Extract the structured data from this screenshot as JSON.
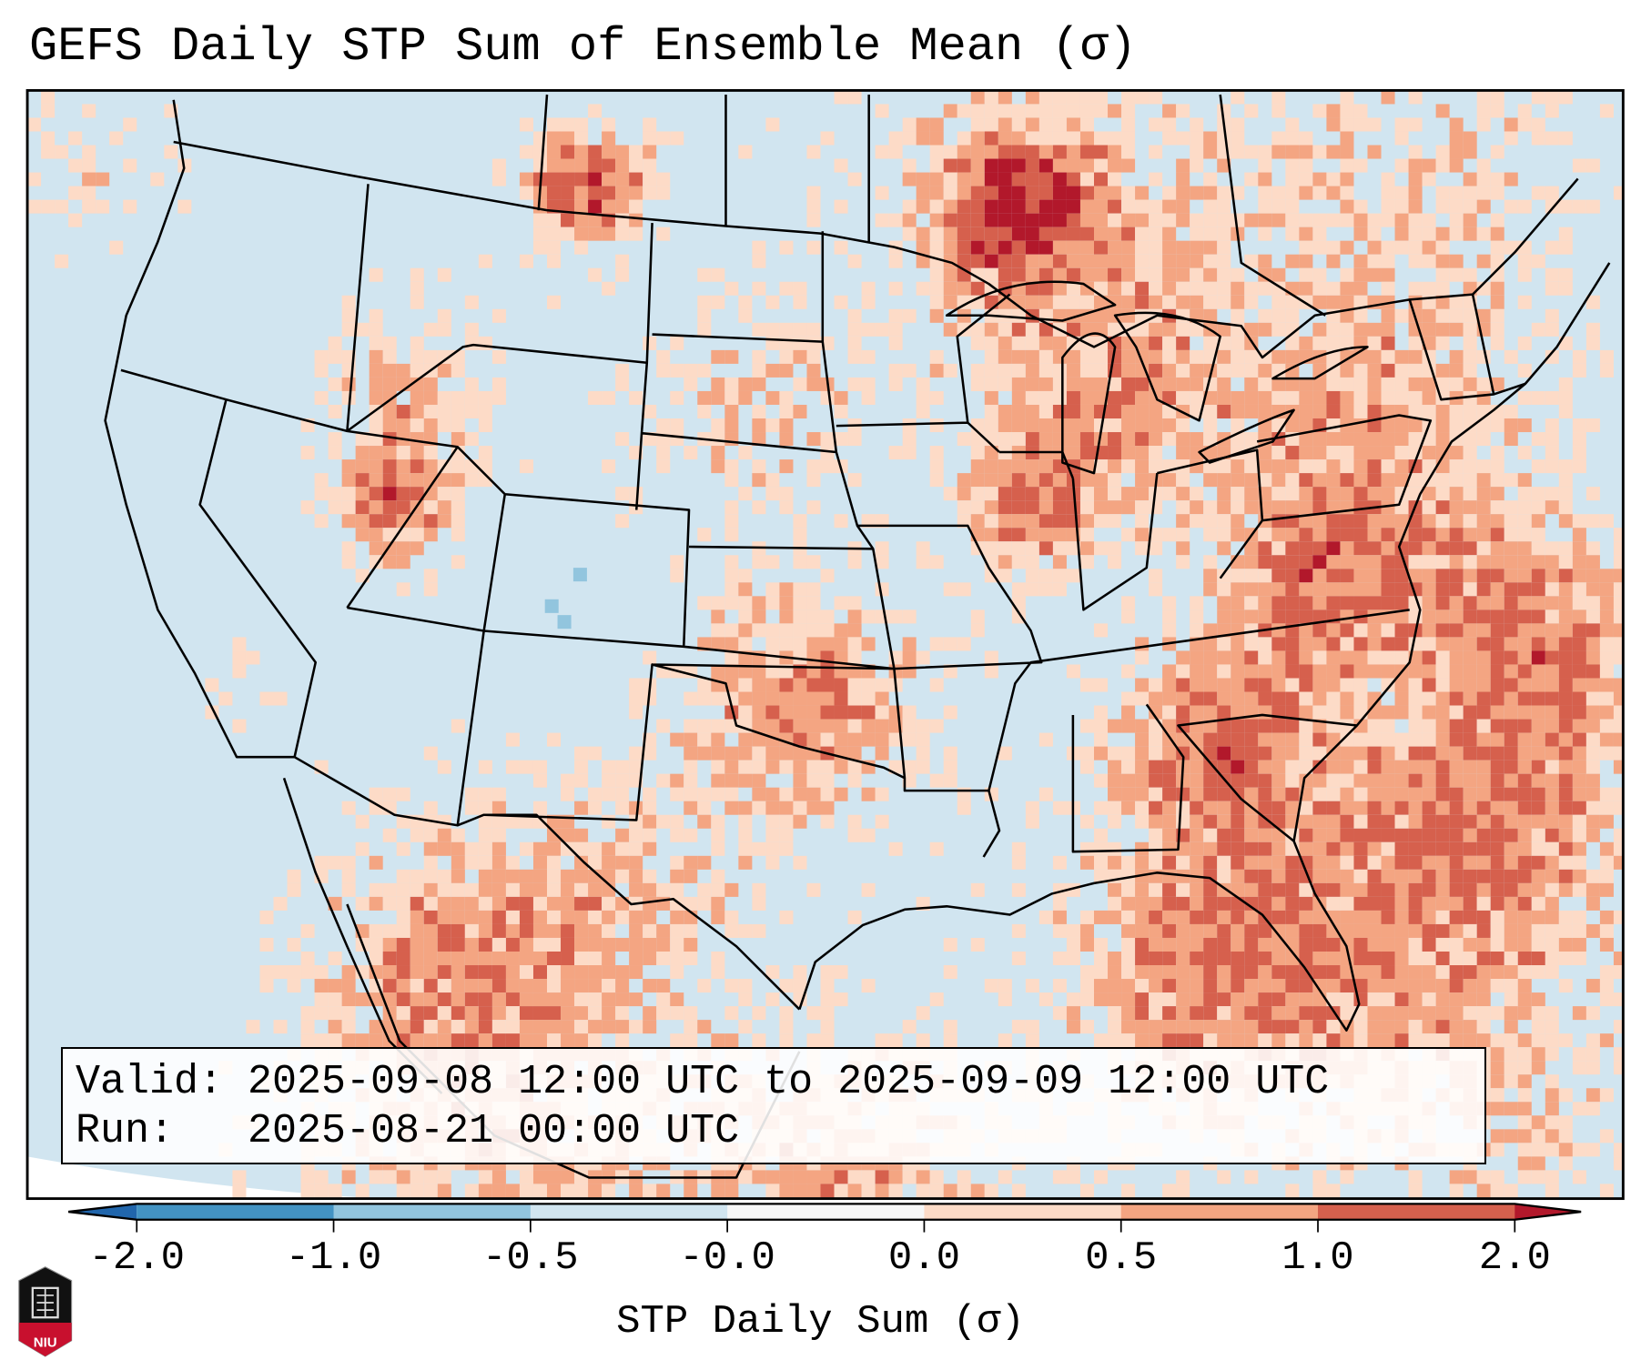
{
  "chart_data": {
    "type": "heatmap",
    "title": "GEFS Daily STP Sum of Ensemble Mean (σ)",
    "colorbar": {
      "label": "STP Daily Sum (σ)",
      "ticks": [
        "-2.0",
        "-1.0",
        "-0.5",
        "-0.0",
        "0.0",
        "0.5",
        "1.0",
        "2.0"
      ],
      "colors": [
        "#2166ac",
        "#4393c3",
        "#92c5de",
        "#d1e5f0",
        "#f7f7f7",
        "#fddbc7",
        "#f4a582",
        "#d6604d",
        "#b2182b"
      ],
      "extend": "both"
    },
    "region": "Continental United States",
    "info": {
      "valid": "Valid: 2025-09-08 12:00 UTC to 2025-09-09 12:00 UTC",
      "run": "Run:   2025-08-21 00:00 UTC"
    },
    "logo": "NIU"
  }
}
